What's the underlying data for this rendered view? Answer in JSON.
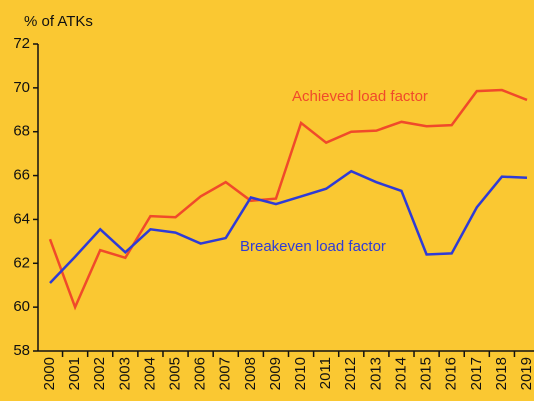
{
  "chart_data": {
    "type": "line",
    "y_label": "% of ATKs",
    "categories": [
      "2000",
      "2001",
      "2002",
      "2003",
      "2004",
      "2005",
      "2006",
      "2007",
      "2008",
      "2009",
      "2010",
      "2011",
      "2012",
      "2013",
      "2014",
      "2015",
      "2016",
      "2017",
      "2018",
      "2019"
    ],
    "series": [
      {
        "name": "Achieved load factor",
        "color": "#f04a2a",
        "values": [
          63.1,
          60.0,
          62.6,
          62.25,
          64.15,
          64.1,
          65.05,
          65.7,
          64.85,
          64.95,
          68.4,
          67.5,
          68.0,
          68.05,
          68.45,
          68.25,
          68.3,
          69.85,
          69.9,
          69.45
        ]
      },
      {
        "name": "Breakeven load factor",
        "color": "#2f3bd6",
        "values": [
          61.1,
          62.3,
          63.55,
          62.5,
          63.55,
          63.4,
          62.9,
          63.15,
          65.0,
          64.7,
          65.05,
          65.4,
          66.2,
          65.7,
          65.3,
          62.4,
          62.45,
          64.55,
          65.95,
          65.9
        ]
      }
    ],
    "ylim": [
      58,
      72
    ],
    "yticks": [
      58,
      60,
      62,
      64,
      66,
      68,
      70,
      72
    ],
    "grid": false
  }
}
